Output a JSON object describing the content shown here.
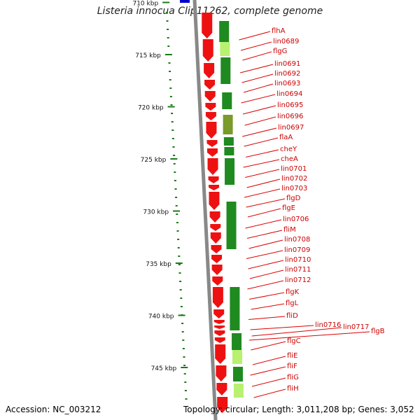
{
  "title": "Listeria innocua Clip11262, complete genome",
  "footer": {
    "accession": "Accession: NC_003212",
    "topology": "Topology: circular; Length: 3,011,208 bp; Genes: 3,052"
  },
  "colors": {
    "gene": "#ee1111",
    "backbone": "#888888",
    "ruler": "#1a7a1a",
    "label": "#cc0000",
    "gc_dark": "#1f8a1f",
    "gc_light": "#b8f070"
  },
  "ruler": [
    {
      "label": "710 kbp",
      "kbp": 710
    },
    {
      "label": "715 kbp",
      "kbp": 715
    },
    {
      "label": "720 kbp",
      "kbp": 720
    },
    {
      "label": "725 kbp",
      "kbp": 725
    },
    {
      "label": "730 kbp",
      "kbp": 730
    },
    {
      "label": "735 kbp",
      "kbp": 735
    },
    {
      "label": "740 kbp",
      "kbp": 740
    },
    {
      "label": "745 kbp",
      "kbp": 745
    }
  ],
  "gene_labels": [
    "flhA",
    "lin0689",
    "flgG",
    "lin0691",
    "lin0692",
    "lin0693",
    "lin0694",
    "lin0695",
    "lin0696",
    "lin0697",
    "flaA",
    "cheY",
    "cheA",
    "lin0701",
    "lin0702",
    "lin0703",
    "flgD",
    "flgE",
    "lin0706",
    "fliM",
    "lin0708",
    "lin0709",
    "lin0710",
    "lin0711",
    "lin0712",
    "flgK",
    "flgL",
    "fliD",
    "lin0716",
    "lin0717",
    "flgB",
    "flgC",
    "fliE",
    "fliF",
    "fliG",
    "fliH"
  ]
}
